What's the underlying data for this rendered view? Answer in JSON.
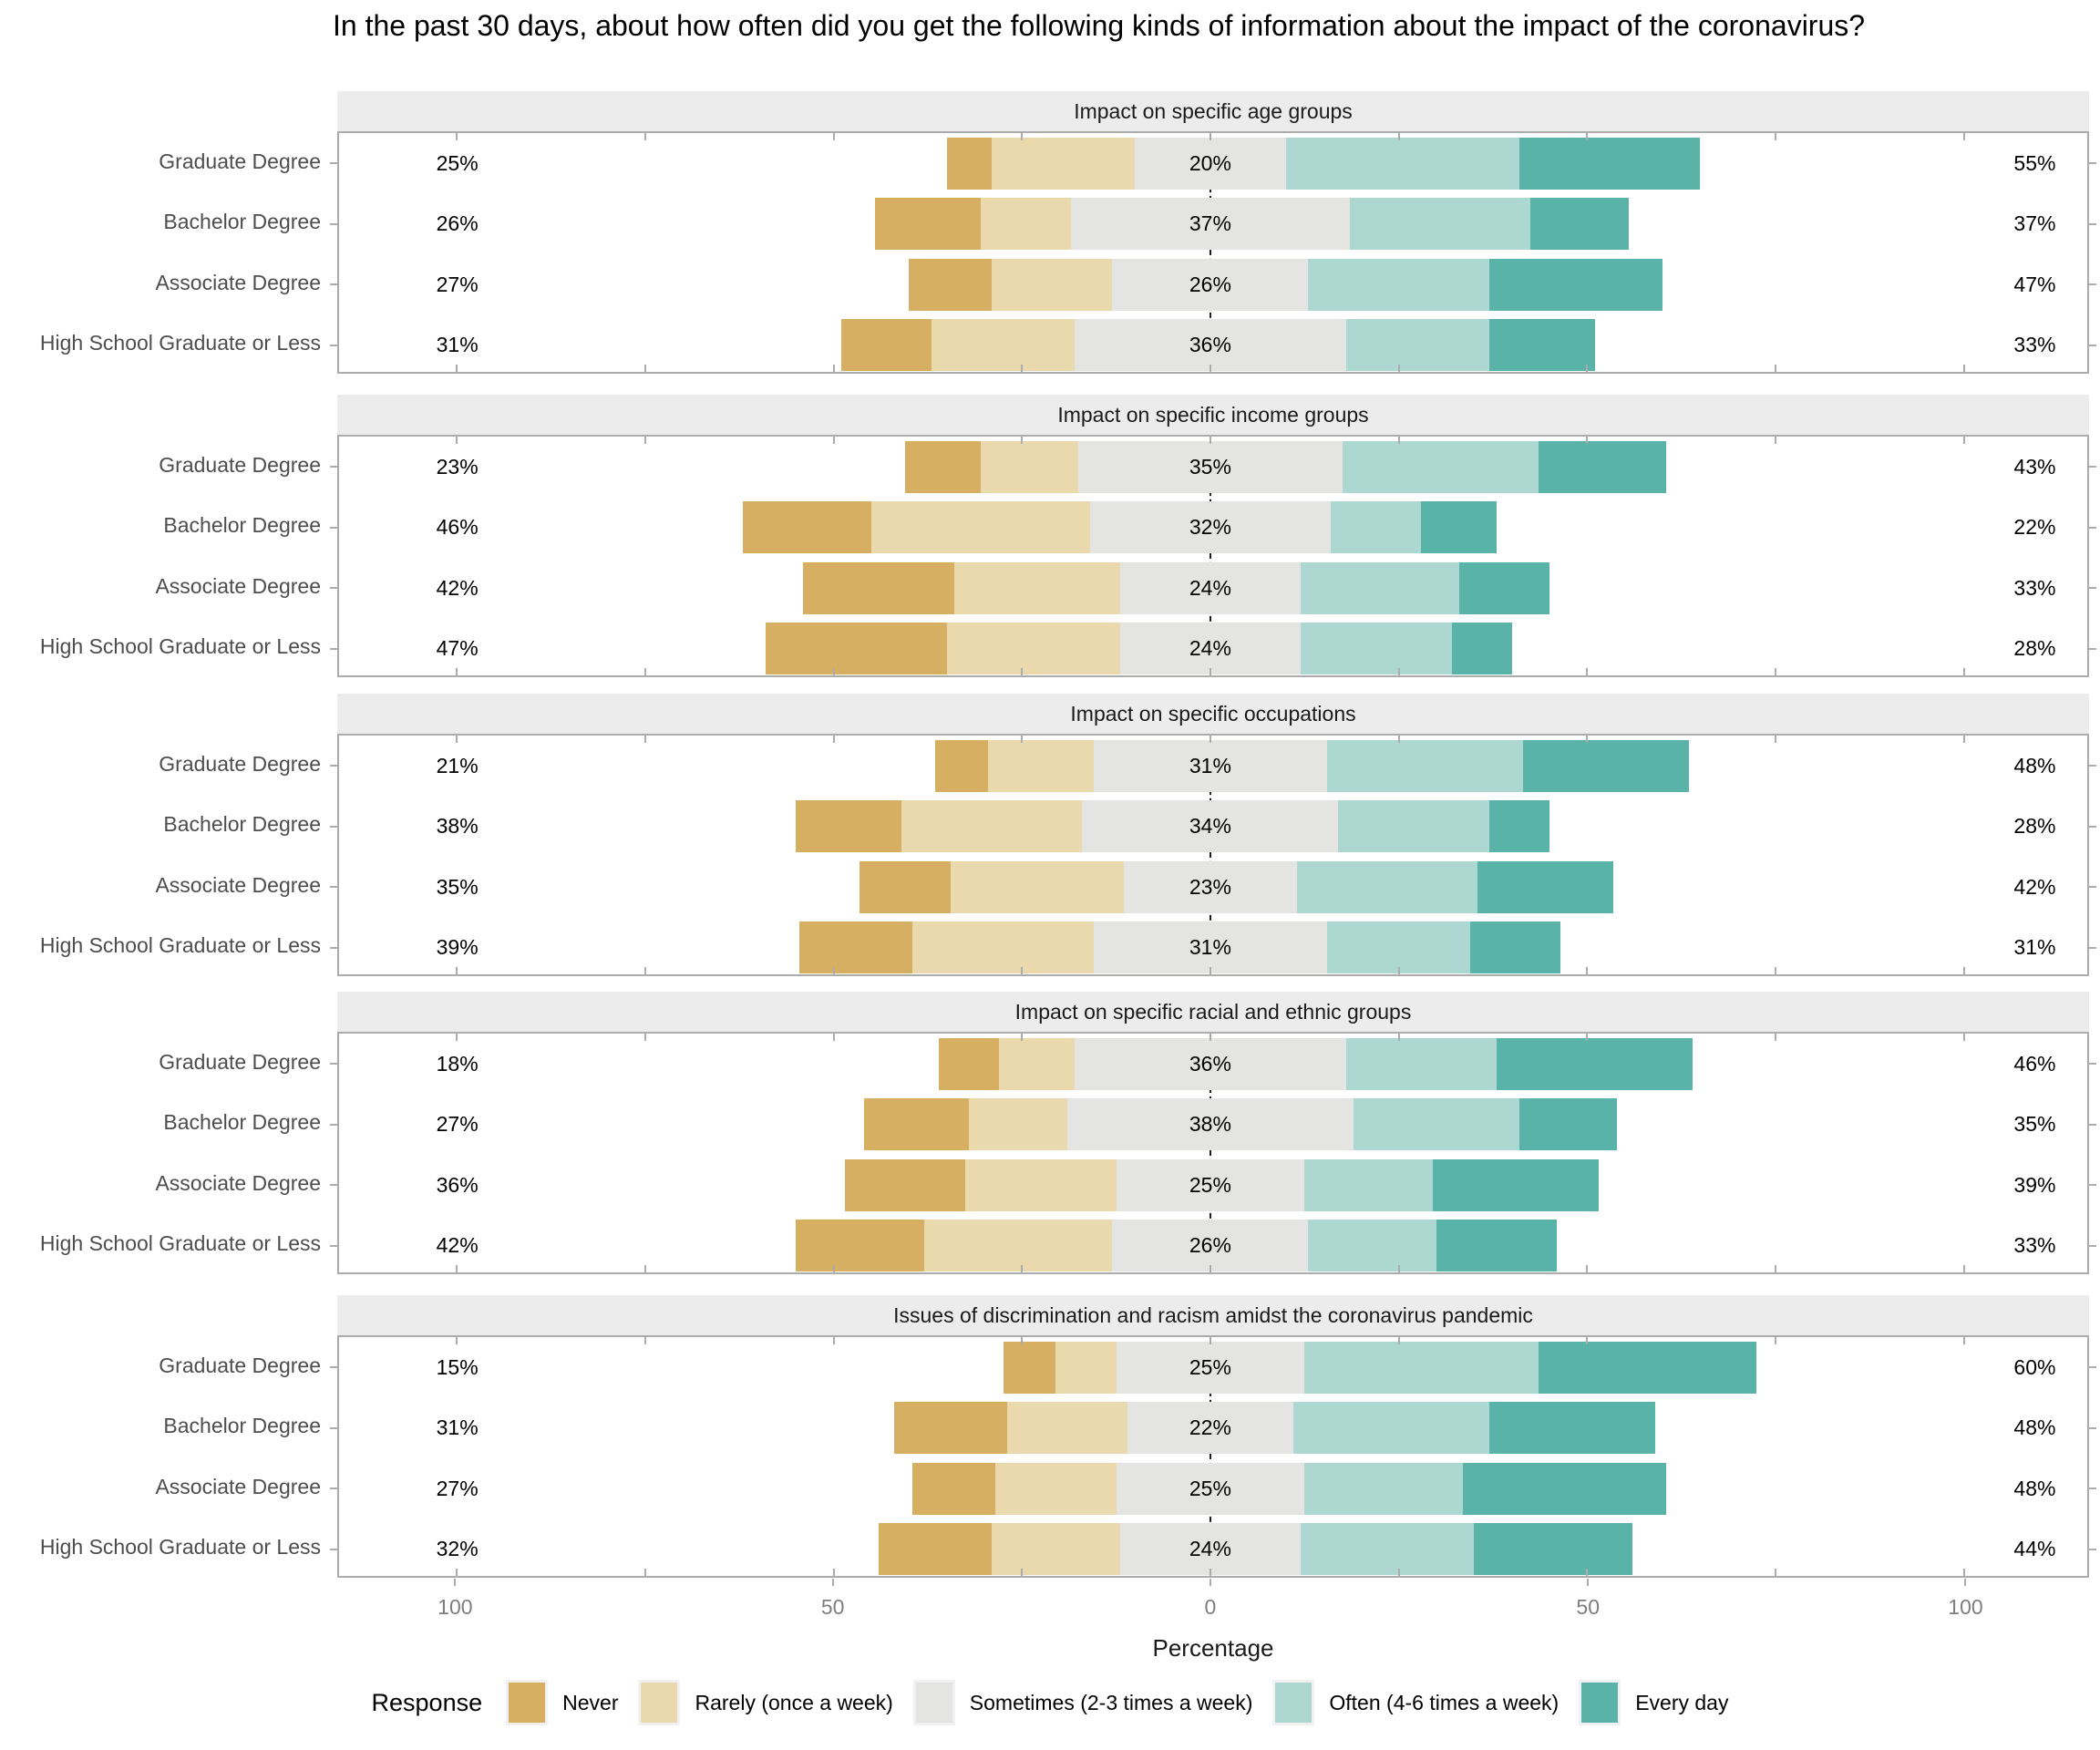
{
  "title": "In the past 30 days, about how often did you get the following kinds of information about the impact of the coronavirus?",
  "axis": {
    "label": "Percentage",
    "tick_labels": [
      "100",
      "50",
      "0",
      "50",
      "100"
    ],
    "tick_values": [
      -100,
      -50,
      0,
      50,
      100
    ]
  },
  "legend": {
    "title": "Response",
    "items": [
      {
        "label": "Never",
        "color": "#D7AF63"
      },
      {
        "label": "Rarely (once a week)",
        "color": "#EAD9AD"
      },
      {
        "label": "Sometimes (2-3 times a week)",
        "color": "#E4E4E2"
      },
      {
        "label": "Often (4-6 times a week)",
        "color": "#ADD8D1"
      },
      {
        "label": "Every day",
        "color": "#5AB3A9"
      }
    ]
  },
  "chart_data": {
    "type": "bar",
    "subtype": "diverging_stacked_likert",
    "title": "In the past 30 days, about how often did you get the following kinds of information about the impact of the coronavirus?",
    "xlabel": "Percentage",
    "x_range": [
      -116,
      116
    ],
    "grid": false,
    "legend_position": "bottom",
    "response_levels": [
      "Never",
      "Rarely (once a week)",
      "Sometimes (2-3 times a week)",
      "Often (4-6 times a week)",
      "Every day"
    ],
    "colors": [
      "#D7AF63",
      "#EAD9AD",
      "#E4E4E2",
      "#ADD8D1",
      "#5AB3A9"
    ],
    "panels": [
      {
        "title": "Impact on specific age groups",
        "rows": [
          {
            "category": "Graduate Degree",
            "left_label": "25%",
            "center_label": "20%",
            "right_label": "55%",
            "values": [
              6,
              19,
              20,
              31,
              24
            ]
          },
          {
            "category": "Bachelor Degree",
            "left_label": "26%",
            "center_label": "37%",
            "right_label": "37%",
            "values": [
              14,
              12,
              37,
              24,
              13
            ]
          },
          {
            "category": "Associate Degree",
            "left_label": "27%",
            "center_label": "26%",
            "right_label": "47%",
            "values": [
              11,
              16,
              26,
              24,
              23
            ]
          },
          {
            "category": "High School Graduate or Less",
            "left_label": "31%",
            "center_label": "36%",
            "right_label": "33%",
            "values": [
              12,
              19,
              36,
              19,
              14
            ]
          }
        ]
      },
      {
        "title": "Impact on specific income groups",
        "rows": [
          {
            "category": "Graduate Degree",
            "left_label": "23%",
            "center_label": "35%",
            "right_label": "43%",
            "values": [
              10,
              13,
              35,
              26,
              17
            ]
          },
          {
            "category": "Bachelor Degree",
            "left_label": "46%",
            "center_label": "32%",
            "right_label": "22%",
            "values": [
              17,
              29,
              32,
              12,
              10
            ]
          },
          {
            "category": "Associate Degree",
            "left_label": "42%",
            "center_label": "24%",
            "right_label": "33%",
            "values": [
              20,
              22,
              24,
              21,
              12
            ]
          },
          {
            "category": "High School Graduate or Less",
            "left_label": "47%",
            "center_label": "24%",
            "right_label": "28%",
            "values": [
              24,
              23,
              24,
              20,
              8
            ]
          }
        ]
      },
      {
        "title": "Impact on specific occupations",
        "rows": [
          {
            "category": "Graduate Degree",
            "left_label": "21%",
            "center_label": "31%",
            "right_label": "48%",
            "values": [
              7,
              14,
              31,
              26,
              22
            ]
          },
          {
            "category": "Bachelor Degree",
            "left_label": "38%",
            "center_label": "34%",
            "right_label": "28%",
            "values": [
              14,
              24,
              34,
              20,
              8
            ]
          },
          {
            "category": "Associate Degree",
            "left_label": "35%",
            "center_label": "23%",
            "right_label": "42%",
            "values": [
              12,
              23,
              23,
              24,
              18
            ]
          },
          {
            "category": "High School Graduate or Less",
            "left_label": "39%",
            "center_label": "31%",
            "right_label": "31%",
            "values": [
              15,
              24,
              31,
              19,
              12
            ]
          }
        ]
      },
      {
        "title": "Impact on specific racial and ethnic groups",
        "rows": [
          {
            "category": "Graduate Degree",
            "left_label": "18%",
            "center_label": "36%",
            "right_label": "46%",
            "values": [
              8,
              10,
              36,
              20,
              26
            ]
          },
          {
            "category": "Bachelor Degree",
            "left_label": "27%",
            "center_label": "38%",
            "right_label": "35%",
            "values": [
              14,
              13,
              38,
              22,
              13
            ]
          },
          {
            "category": "Associate Degree",
            "left_label": "36%",
            "center_label": "25%",
            "right_label": "39%",
            "values": [
              16,
              20,
              25,
              17,
              22
            ]
          },
          {
            "category": "High School Graduate or Less",
            "left_label": "42%",
            "center_label": "26%",
            "right_label": "33%",
            "values": [
              17,
              25,
              26,
              17,
              16
            ]
          }
        ]
      },
      {
        "title": "Issues of discrimination and racism amidst the coronavirus pandemic",
        "rows": [
          {
            "category": "Graduate Degree",
            "left_label": "15%",
            "center_label": "25%",
            "right_label": "60%",
            "values": [
              7,
              8,
              25,
              31,
              29
            ]
          },
          {
            "category": "Bachelor Degree",
            "left_label": "31%",
            "center_label": "22%",
            "right_label": "48%",
            "values": [
              15,
              16,
              22,
              26,
              22
            ]
          },
          {
            "category": "Associate Degree",
            "left_label": "27%",
            "center_label": "25%",
            "right_label": "48%",
            "values": [
              11,
              16,
              25,
              21,
              27
            ]
          },
          {
            "category": "High School Graduate or Less",
            "left_label": "32%",
            "center_label": "24%",
            "right_label": "44%",
            "values": [
              15,
              17,
              24,
              23,
              21
            ]
          }
        ]
      }
    ]
  }
}
